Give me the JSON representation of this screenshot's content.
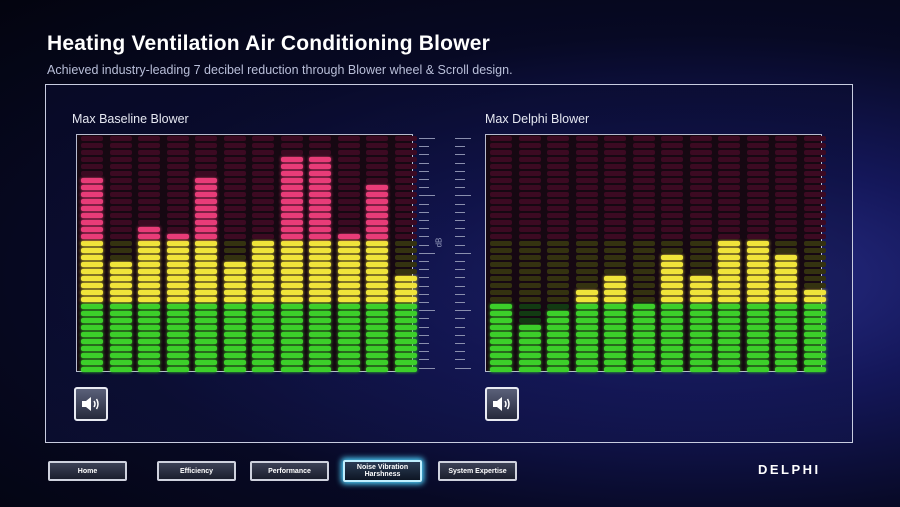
{
  "header": {
    "title": "Heating Ventilation Air Conditioning Blower",
    "subtitle": "Achieved industry-leading 7 decibel reduction through Blower wheel & Scroll design."
  },
  "baseline": {
    "label": "Max Baseline Blower",
    "levels": [
      0.82,
      0.47,
      0.63,
      0.58,
      0.82,
      0.47,
      0.55,
      0.92,
      0.92,
      0.58,
      0.78,
      0.4
    ],
    "speaker_icon": "speaker-icon"
  },
  "delphi": {
    "label": "Max Delphi Blower",
    "levels": [
      0.3,
      0.22,
      0.27,
      0.36,
      0.42,
      0.3,
      0.5,
      0.42,
      0.55,
      0.55,
      0.5,
      0.36
    ],
    "speaker_icon": "speaker-icon"
  },
  "scale": {
    "unit": "dB"
  },
  "meter_colors": {
    "green": "#3ccf2a",
    "yellow": "#f0e43a",
    "red": "#e83c78",
    "dim_red": "#3c0a22",
    "dim_yellow": "#343210",
    "dim_green": "#123a12"
  },
  "nav": {
    "home": "Home",
    "efficiency": "Efficiency",
    "performance": "Performance",
    "nvh": "Noise Vibration Harshness",
    "expertise": "System Expertise"
  },
  "brand": {
    "logo": "DELPHI"
  }
}
